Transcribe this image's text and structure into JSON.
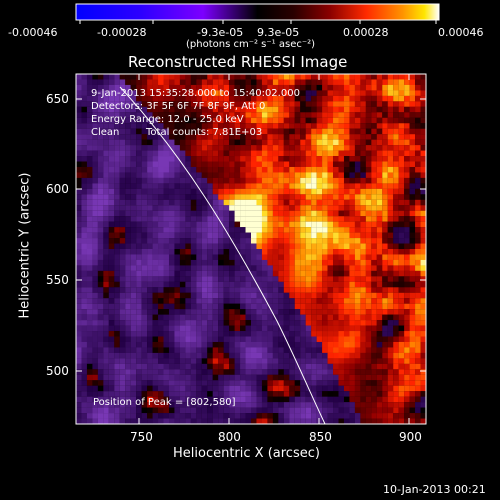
{
  "colorbar": {
    "tick_labels": [
      "-0.00046",
      "-0.00028",
      "-9.3e-05",
      "9.3e-05",
      "0.00028",
      "0.00046"
    ],
    "units_label": "(photons cm⁻² s⁻¹ asec⁻²)",
    "colors": [
      "#0000ff",
      "#3a00ff",
      "#7a00ff",
      "#000000",
      "#3a0000",
      "#8b0000",
      "#ff2a00",
      "#ff8a00",
      "#ffe000",
      "#ffffff"
    ]
  },
  "chart": {
    "title": "Reconstructed RHESSI Image",
    "time_range": "9-Jan-2013 15:35:28.000 to 15:40:02.000",
    "detectors": "Detectors: 3F 5F 6F 7F 8F 9F, Att 0",
    "energy_range": "Energy Range: 12.0 - 25.0 keV",
    "clean_label": "Clean",
    "total_counts": "Total counts: 7.81E+03",
    "peak_label": "Position of Peak = [802,580]",
    "xlabel": "Heliocentric X (arcsec)",
    "ylabel": "Heliocentric Y (arcsec)",
    "x_ticks": [
      750,
      800,
      850,
      900
    ],
    "y_ticks": [
      500,
      550,
      600,
      650
    ],
    "x_tick_labels": [
      "750",
      "800",
      "850",
      "900"
    ],
    "y_tick_labels": [
      "500",
      "550",
      "600",
      "650"
    ],
    "xlim": [
      716,
      906
    ],
    "ylim": [
      471,
      664
    ],
    "peak": [
      802,
      580
    ]
  },
  "footer": {
    "timestamp": "10-Jan-2013 00:21"
  }
}
